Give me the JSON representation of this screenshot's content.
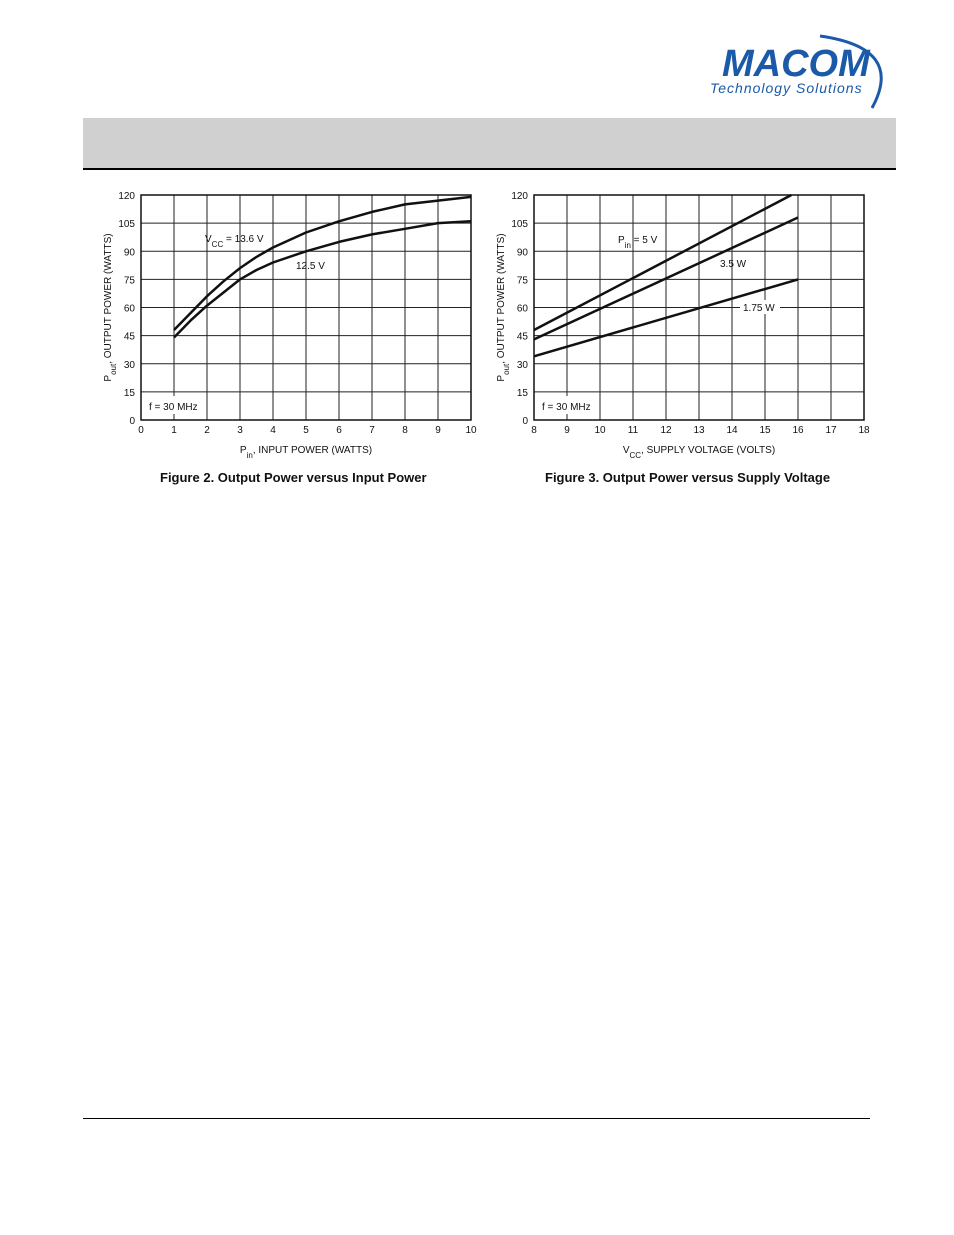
{
  "logo": {
    "wordmark": "MACOM",
    "tagline": "Technology Solutions",
    "brand_color": "#1a5aa8"
  },
  "chart_data": [
    {
      "type": "line",
      "caption": "Figure 2. Output Power versus Input Power",
      "xlabel_main": "P",
      "xlabel_sub": "in",
      "xlabel_rest": ", INPUT POWER (WATTS)",
      "ylabel_main": "P",
      "ylabel_sub": "out",
      "ylabel_rest": ", OUTPUT POWER (WATTS)",
      "xlim": [
        0,
        10
      ],
      "ylim": [
        0,
        120
      ],
      "xticks": [
        "0",
        "1",
        "2",
        "3",
        "4",
        "5",
        "6",
        "7",
        "8",
        "9",
        "10"
      ],
      "yticks": [
        "0",
        "15",
        "30",
        "45",
        "60",
        "75",
        "90",
        "105",
        "120"
      ],
      "grid": true,
      "annotation": "f = 30 MHz",
      "series_labels": [
        {
          "main": "V",
          "sub": "CC",
          "rest": " = 13.6 V"
        },
        {
          "main": "12.5 V",
          "sub": "",
          "rest": ""
        }
      ],
      "series": [
        {
          "x": [
            1,
            1.5,
            2,
            2.5,
            3,
            3.5,
            4,
            5,
            6,
            7,
            8,
            9,
            10
          ],
          "y": [
            48,
            57,
            66,
            74,
            81,
            87,
            92,
            100,
            106,
            111,
            115,
            117,
            119
          ]
        },
        {
          "x": [
            1,
            1.5,
            2,
            2.5,
            3,
            3.5,
            4,
            5,
            6,
            7,
            8,
            9,
            10
          ],
          "y": [
            44,
            53,
            61,
            68,
            75,
            80,
            84,
            90,
            95,
            99,
            102,
            105,
            106
          ]
        }
      ]
    },
    {
      "type": "line",
      "caption": "Figure 3. Output Power versus Supply Voltage",
      "xlabel_main": "V",
      "xlabel_sub": "CC",
      "xlabel_rest": ", SUPPLY VOLTAGE (VOLTS)",
      "ylabel_main": "P",
      "ylabel_sub": "out",
      "ylabel_rest": ", OUTPUT POWER (WATTS)",
      "xlim": [
        8,
        18
      ],
      "ylim": [
        0,
        120
      ],
      "xticks": [
        "8",
        "9",
        "10",
        "11",
        "12",
        "13",
        "14",
        "15",
        "16",
        "17",
        "18"
      ],
      "yticks": [
        "0",
        "15",
        "30",
        "45",
        "60",
        "75",
        "90",
        "105",
        "120"
      ],
      "grid": true,
      "annotation": "f = 30 MHz",
      "series_labels": [
        {
          "main": "P",
          "sub": "in",
          "rest": " = 5 V"
        },
        {
          "main": "3.5 W",
          "sub": "",
          "rest": ""
        },
        {
          "main": "1.75 W",
          "sub": "",
          "rest": ""
        }
      ],
      "series": [
        {
          "x": [
            8,
            15.8
          ],
          "y": [
            48,
            120
          ]
        },
        {
          "x": [
            8,
            16
          ],
          "y": [
            43,
            108
          ]
        },
        {
          "x": [
            8,
            16
          ],
          "y": [
            34,
            75
          ]
        }
      ]
    }
  ]
}
